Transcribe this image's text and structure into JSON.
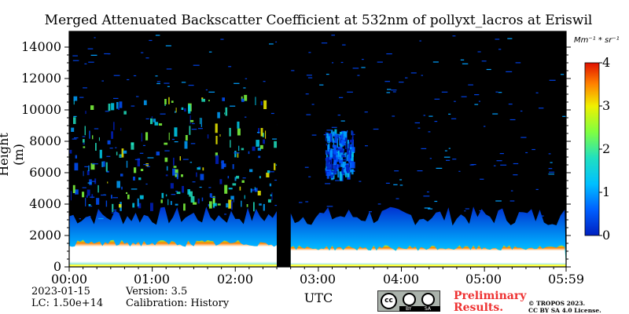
{
  "chart_data": {
    "type": "heatmap",
    "title": "Merged Attenuated Backscatter Coefficient at 532nm of pollyxt_lacros at Eriswil",
    "ylabel": "Height (m)",
    "xlabel": "UTC",
    "ylim": [
      0,
      15000
    ],
    "xlim": [
      "00:00",
      "05:59"
    ],
    "yticks": [
      "0",
      "2000",
      "4000",
      "6000",
      "8000",
      "10000",
      "12000",
      "14000"
    ],
    "xticks": [
      "00:00",
      "01:00",
      "02:00",
      "03:00",
      "04:00",
      "05:00",
      "05:59"
    ],
    "colorbar": {
      "unit": "Mm⁻¹ * sr⁻¹",
      "range": [
        0,
        4
      ],
      "ticks": [
        "0",
        "1",
        "2",
        "3",
        "4"
      ],
      "colormap": "jet",
      "colors": [
        "#0020c0",
        "#00a0ff",
        "#20e0c0",
        "#80ff40",
        "#f0f000",
        "#ff8000",
        "#e01000"
      ]
    },
    "background_color": "#000000",
    "features": [
      {
        "time_range": [
          "00:00",
          "02:30"
        ],
        "layer": "boundary layer",
        "top_height_m": 1500,
        "value": "above 4"
      },
      {
        "time_range": [
          "00:00",
          "02:30"
        ],
        "layer": "aerosol layer",
        "height_range_m": [
          1500,
          3500
        ],
        "value_range": [
          1,
          3
        ]
      },
      {
        "time_range": [
          "00:00",
          "02:30"
        ],
        "layer": "cirrus / high clouds",
        "height_range_m": [
          4000,
          11000
        ],
        "value_range": [
          0.5,
          3
        ]
      },
      {
        "time_range": [
          "02:30",
          "02:40"
        ],
        "layer": "no data gap"
      },
      {
        "time_range": [
          "02:40",
          "05:59"
        ],
        "layer": "boundary layer",
        "top_height_m": 1200,
        "value": "above 4"
      },
      {
        "time_range": [
          "02:40",
          "05:59"
        ],
        "layer": "aerosol layer",
        "height_range_m": [
          1200,
          3500
        ],
        "value_range": [
          0.5,
          2
        ]
      },
      {
        "time_range": [
          "03:05",
          "03:25"
        ],
        "layer": "cloud",
        "height_range_m": [
          6000,
          8800
        ],
        "value_range": [
          0.5,
          1.5
        ]
      }
    ]
  },
  "footer": {
    "date": "2023-01-15",
    "lc": "LC: 1.50e+14",
    "version": "Version: 3.5",
    "calibration": "Calibration: History",
    "preliminary_line1": "Preliminary",
    "preliminary_line2": "Results.",
    "copyright_line1": "© TROPOS 2023.",
    "copyright_line2": "CC BY SA 4.0 License.",
    "license_badge": {
      "by": "BY",
      "sa": "SA"
    }
  }
}
